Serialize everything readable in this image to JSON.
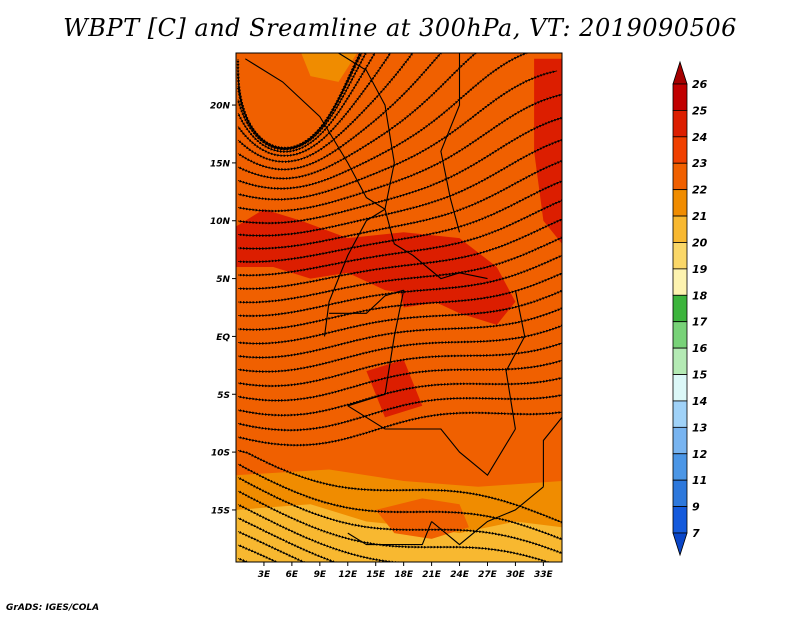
{
  "title": "WBPT [C] and Sreamline at 300hPa, VT: 2019090506",
  "credit": "GrADS: IGES/COLA",
  "lat_labels": [
    "20N",
    "15N",
    "10N",
    "5N",
    "EQ",
    "5S",
    "10S",
    "15S"
  ],
  "lon_labels": [
    "3E",
    "6E",
    "9E",
    "12E",
    "15E",
    "18E",
    "21E",
    "24E",
    "27E",
    "30E",
    "33E"
  ],
  "colorbar": {
    "labels": [
      "26",
      "25",
      "24",
      "23",
      "22",
      "21",
      "20",
      "19",
      "18",
      "17",
      "16",
      "15",
      "14",
      "13",
      "12",
      "11",
      "9",
      "7"
    ],
    "colors": [
      "#a50000",
      "#c00000",
      "#dc1e00",
      "#f04000",
      "#f06000",
      "#f08c00",
      "#f8b830",
      "#fad768",
      "#fdf3b0",
      "#3cb43c",
      "#78d278",
      "#b4eab4",
      "#dcf8f8",
      "#a0d2f8",
      "#78b4f0",
      "#4b96e6",
      "#2d78dc",
      "#145adc",
      "#0a46c8"
    ]
  },
  "map": {
    "lat_range": [
      -19.5,
      24.5
    ],
    "lon_range": [
      0,
      35
    ],
    "colors": {
      "dominant": "#f06000",
      "warm": "#dc1e00",
      "cool": "#f08c00",
      "coolest": "#f8b830"
    }
  }
}
